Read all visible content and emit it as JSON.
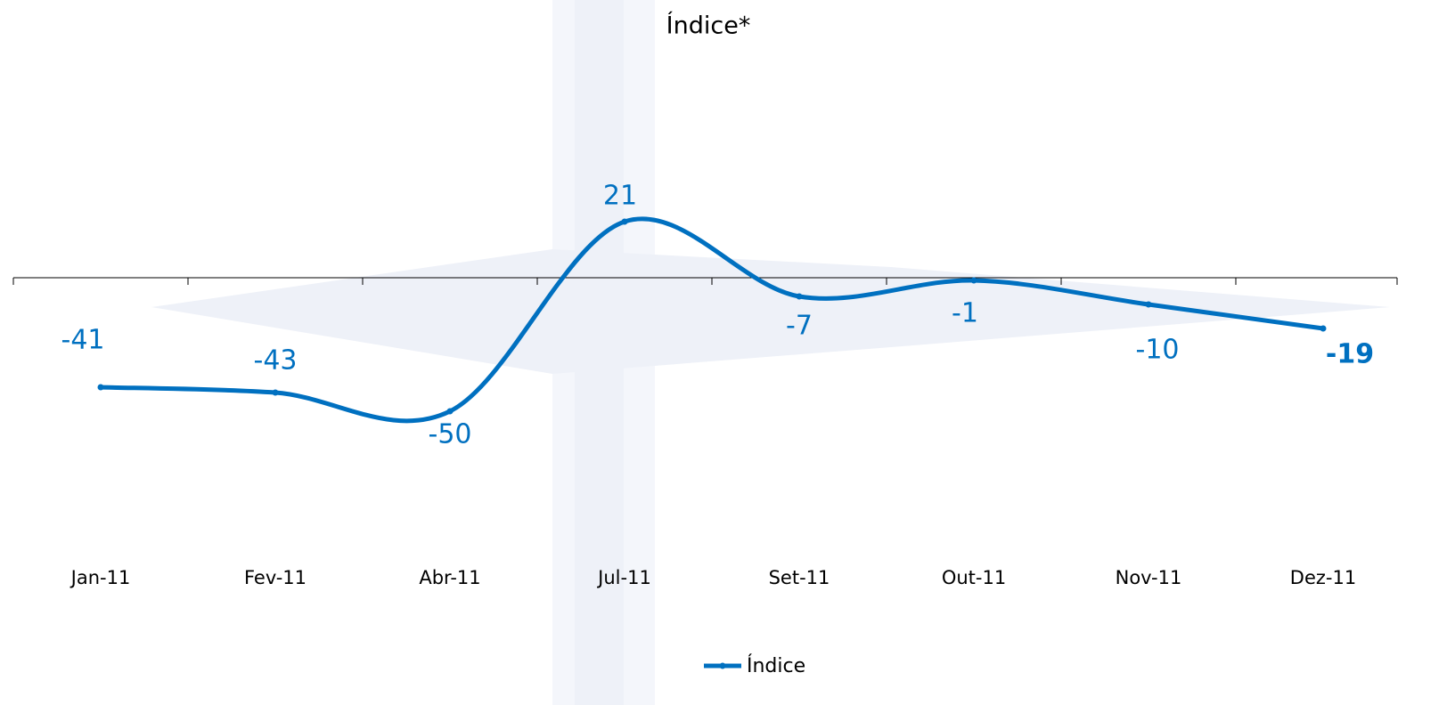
{
  "chart_data": {
    "type": "line",
    "title": "Índice*",
    "categories": [
      "Jan-11",
      "Fev-11",
      "Abr-11",
      "Jul-11",
      "Set-11",
      "Out-11",
      "Nov-11",
      "Dez-11"
    ],
    "series": [
      {
        "name": "Índice",
        "color": "#0070c0",
        "values": [
          -41,
          -43,
          -50,
          21,
          -7,
          -1,
          -10,
          -19
        ]
      }
    ],
    "ylim": [
      -100,
      100
    ],
    "smooth": true,
    "legend": "bottom"
  }
}
